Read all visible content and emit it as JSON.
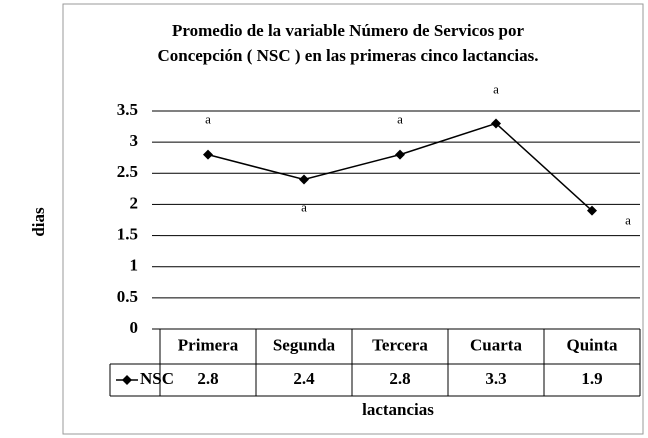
{
  "chart_data": {
    "type": "line",
    "title": [
      "Promedio de la variable Número de Servicos por",
      "Concepción ( NSC ) en las primeras cinco lactancias."
    ],
    "y_label": "dias",
    "x_label": "lactancias",
    "categories": [
      "Primera",
      "Segunda",
      "Tercera",
      "Cuarta",
      "Quinta"
    ],
    "series": [
      {
        "name": "NSC",
        "color": "#000000",
        "values": [
          2.8,
          2.4,
          2.8,
          3.3,
          1.9
        ]
      }
    ],
    "annotations": [
      "a",
      "a",
      "a",
      "a",
      "a"
    ],
    "ylim": [
      0,
      3.5
    ],
    "yticks": [
      0,
      0.5,
      1,
      1.5,
      2,
      2.5,
      3,
      3.5
    ],
    "grid": true,
    "data_table": true
  }
}
